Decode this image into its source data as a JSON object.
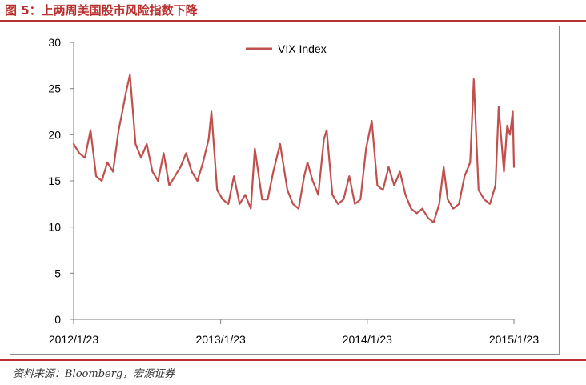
{
  "figure": {
    "title": "图 5：上两周美国股市风险指数下降",
    "source": "资料来源：Bloomberg，宏源证券"
  },
  "colors": {
    "accent": "#b8312f",
    "series": "#c0504d",
    "axis": "#7f7f7f"
  },
  "chart_data": {
    "type": "line",
    "title": "",
    "xlabel": "",
    "ylabel": "",
    "ylim": [
      0,
      30
    ],
    "yticks": [
      0,
      5,
      10,
      15,
      20,
      25,
      30
    ],
    "xlim": [
      "2012-01-23",
      "2015-01-23"
    ],
    "xticks": [
      "2012/1/23",
      "2013/1/23",
      "2014/1/23",
      "2015/1/23"
    ],
    "grid": false,
    "legend": "top-center",
    "series": [
      {
        "name": "VIX Index",
        "x": [
          "2012-01-23",
          "2012-02-06",
          "2012-02-20",
          "2012-03-05",
          "2012-03-19",
          "2012-04-02",
          "2012-04-16",
          "2012-04-30",
          "2012-05-14",
          "2012-05-21",
          "2012-06-01",
          "2012-06-11",
          "2012-06-25",
          "2012-07-09",
          "2012-07-23",
          "2012-08-06",
          "2012-08-20",
          "2012-09-03",
          "2012-09-17",
          "2012-10-01",
          "2012-10-15",
          "2012-10-29",
          "2012-11-12",
          "2012-11-26",
          "2012-12-10",
          "2012-12-24",
          "2012-12-31",
          "2013-01-14",
          "2013-01-28",
          "2013-02-11",
          "2013-02-25",
          "2013-03-11",
          "2013-03-25",
          "2013-04-08",
          "2013-04-18",
          "2013-05-06",
          "2013-05-20",
          "2013-06-03",
          "2013-06-20",
          "2013-07-08",
          "2013-07-22",
          "2013-08-05",
          "2013-08-19",
          "2013-08-27",
          "2013-09-09",
          "2013-09-23",
          "2013-10-07",
          "2013-10-14",
          "2013-10-28",
          "2013-11-11",
          "2013-11-25",
          "2013-12-09",
          "2013-12-23",
          "2014-01-06",
          "2014-01-20",
          "2014-02-03",
          "2014-02-17",
          "2014-03-03",
          "2014-03-17",
          "2014-03-31",
          "2014-04-14",
          "2014-04-28",
          "2014-05-12",
          "2014-05-26",
          "2014-06-09",
          "2014-06-23",
          "2014-07-07",
          "2014-07-21",
          "2014-08-01",
          "2014-08-11",
          "2014-08-25",
          "2014-09-08",
          "2014-09-22",
          "2014-10-06",
          "2014-10-15",
          "2014-10-27",
          "2014-11-10",
          "2014-11-24",
          "2014-12-08",
          "2014-12-16",
          "2014-12-29",
          "2015-01-06",
          "2015-01-13",
          "2015-01-20",
          "2015-01-23"
        ],
        "values": [
          19.0,
          18.0,
          17.5,
          20.5,
          15.5,
          15.0,
          17.0,
          16.0,
          20.5,
          22.0,
          24.5,
          26.5,
          19.0,
          17.5,
          19.0,
          16.0,
          15.0,
          18.0,
          14.5,
          15.5,
          16.5,
          18.0,
          16.0,
          15.0,
          17.0,
          19.5,
          22.5,
          14.0,
          13.0,
          12.5,
          15.5,
          12.5,
          13.5,
          12.0,
          18.5,
          13.0,
          13.0,
          16.0,
          19.0,
          14.0,
          12.5,
          12.0,
          15.5,
          17.0,
          15.0,
          13.5,
          19.5,
          20.5,
          13.5,
          12.5,
          13.0,
          15.5,
          12.5,
          13.0,
          18.5,
          21.5,
          14.5,
          14.0,
          16.5,
          14.5,
          16.0,
          13.5,
          12.0,
          11.5,
          12.0,
          11.0,
          10.5,
          12.5,
          16.5,
          13.0,
          12.0,
          12.5,
          15.5,
          17.0,
          26.0,
          14.0,
          13.0,
          12.5,
          14.5,
          23.0,
          16.0,
          21.0,
          20.0,
          22.5,
          16.5
        ]
      }
    ]
  }
}
